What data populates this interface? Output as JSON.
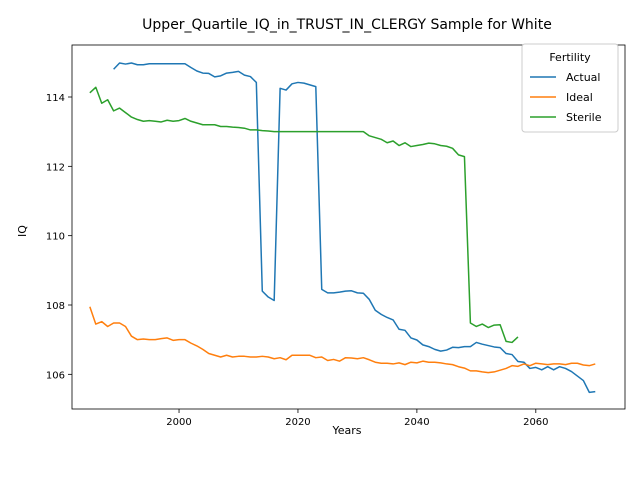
{
  "chart_data": {
    "type": "line",
    "title": "Upper_Quartile_IQ_in_TRUST_IN_CLERGY Sample for White",
    "xlabel": "Years",
    "ylabel": "IQ",
    "xlim": [
      1982,
      2075
    ],
    "ylim": [
      105.0,
      115.5
    ],
    "xticks": [
      2000,
      2020,
      2040,
      2060
    ],
    "yticks": [
      106,
      108,
      110,
      112,
      114
    ],
    "xtick_labels": [
      "2000",
      "2020",
      "2040",
      "2060"
    ],
    "ytick_labels": [
      "106",
      "108",
      "110",
      "112",
      "114"
    ],
    "legend": {
      "title": "Fertility",
      "position": "top-right"
    },
    "grid": false,
    "series": [
      {
        "name": "Actual",
        "color": "#1f77b4",
        "points": [
          [
            1989,
            114.8
          ],
          [
            1990,
            114.98
          ],
          [
            1991,
            114.95
          ],
          [
            1992,
            114.98
          ],
          [
            1993,
            114.93
          ],
          [
            1994,
            114.93
          ],
          [
            1995,
            114.96
          ],
          [
            1996,
            114.96
          ],
          [
            1997,
            114.96
          ],
          [
            1998,
            114.96
          ],
          [
            1999,
            114.96
          ],
          [
            2000,
            114.96
          ],
          [
            2001,
            114.96
          ],
          [
            2002,
            114.85
          ],
          [
            2003,
            114.75
          ],
          [
            2004,
            114.69
          ],
          [
            2005,
            114.68
          ],
          [
            2006,
            114.58
          ],
          [
            2007,
            114.61
          ],
          [
            2008,
            114.69
          ],
          [
            2009,
            114.71
          ],
          [
            2010,
            114.74
          ],
          [
            2011,
            114.63
          ],
          [
            2012,
            114.59
          ],
          [
            2013,
            114.42
          ],
          [
            2014,
            108.4
          ],
          [
            2015,
            108.23
          ],
          [
            2016,
            108.13
          ],
          [
            2017,
            114.25
          ],
          [
            2018,
            114.2
          ],
          [
            2019,
            114.38
          ],
          [
            2020,
            114.42
          ],
          [
            2021,
            114.4
          ],
          [
            2022,
            114.35
          ],
          [
            2023,
            114.3
          ],
          [
            2024,
            108.45
          ],
          [
            2025,
            108.35
          ],
          [
            2026,
            108.35
          ],
          [
            2027,
            108.37
          ],
          [
            2028,
            108.4
          ],
          [
            2029,
            108.41
          ],
          [
            2030,
            108.35
          ],
          [
            2031,
            108.34
          ],
          [
            2032,
            108.16
          ],
          [
            2033,
            107.85
          ],
          [
            2034,
            107.73
          ],
          [
            2035,
            107.64
          ],
          [
            2036,
            107.57
          ],
          [
            2037,
            107.3
          ],
          [
            2038,
            107.27
          ],
          [
            2039,
            107.05
          ],
          [
            2040,
            106.99
          ],
          [
            2041,
            106.85
          ],
          [
            2042,
            106.8
          ],
          [
            2043,
            106.72
          ],
          [
            2044,
            106.67
          ],
          [
            2045,
            106.7
          ],
          [
            2046,
            106.78
          ],
          [
            2047,
            106.77
          ],
          [
            2048,
            106.8
          ],
          [
            2049,
            106.8
          ],
          [
            2050,
            106.92
          ],
          [
            2051,
            106.87
          ],
          [
            2052,
            106.83
          ],
          [
            2053,
            106.79
          ],
          [
            2054,
            106.77
          ],
          [
            2055,
            106.6
          ],
          [
            2056,
            106.57
          ],
          [
            2057,
            106.37
          ],
          [
            2058,
            106.35
          ],
          [
            2059,
            106.17
          ],
          [
            2060,
            106.2
          ],
          [
            2061,
            106.13
          ],
          [
            2062,
            106.22
          ],
          [
            2063,
            106.13
          ],
          [
            2064,
            106.22
          ],
          [
            2065,
            106.17
          ],
          [
            2066,
            106.08
          ],
          [
            2067,
            105.95
          ],
          [
            2068,
            105.82
          ],
          [
            2069,
            105.48
          ],
          [
            2070,
            105.5
          ]
        ]
      },
      {
        "name": "Ideal",
        "color": "#ff7f0e",
        "points": [
          [
            1985,
            107.95
          ],
          [
            1986,
            107.45
          ],
          [
            1987,
            107.52
          ],
          [
            1988,
            107.38
          ],
          [
            1989,
            107.48
          ],
          [
            1990,
            107.48
          ],
          [
            1991,
            107.38
          ],
          [
            1992,
            107.1
          ],
          [
            1993,
            107.0
          ],
          [
            1994,
            107.02
          ],
          [
            1995,
            107.0
          ],
          [
            1996,
            107.0
          ],
          [
            1997,
            107.03
          ],
          [
            1998,
            107.05
          ],
          [
            1999,
            106.98
          ],
          [
            2000,
            107.0
          ],
          [
            2001,
            107.0
          ],
          [
            2002,
            106.9
          ],
          [
            2003,
            106.82
          ],
          [
            2004,
            106.72
          ],
          [
            2005,
            106.6
          ],
          [
            2006,
            106.55
          ],
          [
            2007,
            106.5
          ],
          [
            2008,
            106.55
          ],
          [
            2009,
            106.5
          ],
          [
            2010,
            106.52
          ],
          [
            2011,
            106.52
          ],
          [
            2012,
            106.5
          ],
          [
            2013,
            106.5
          ],
          [
            2014,
            106.52
          ],
          [
            2015,
            106.5
          ],
          [
            2016,
            106.45
          ],
          [
            2017,
            106.48
          ],
          [
            2018,
            106.42
          ],
          [
            2019,
            106.55
          ],
          [
            2020,
            106.55
          ],
          [
            2021,
            106.55
          ],
          [
            2022,
            106.55
          ],
          [
            2023,
            106.48
          ],
          [
            2024,
            106.5
          ],
          [
            2025,
            106.4
          ],
          [
            2026,
            106.43
          ],
          [
            2027,
            106.38
          ],
          [
            2028,
            106.48
          ],
          [
            2029,
            106.47
          ],
          [
            2030,
            106.45
          ],
          [
            2031,
            106.48
          ],
          [
            2032,
            106.42
          ],
          [
            2033,
            106.35
          ],
          [
            2034,
            106.32
          ],
          [
            2035,
            106.32
          ],
          [
            2036,
            106.3
          ],
          [
            2037,
            106.33
          ],
          [
            2038,
            106.28
          ],
          [
            2039,
            106.35
          ],
          [
            2040,
            106.33
          ],
          [
            2041,
            106.38
          ],
          [
            2042,
            106.35
          ],
          [
            2043,
            106.35
          ],
          [
            2044,
            106.33
          ],
          [
            2045,
            106.3
          ],
          [
            2046,
            106.28
          ],
          [
            2047,
            106.22
          ],
          [
            2048,
            106.18
          ],
          [
            2049,
            106.1
          ],
          [
            2050,
            106.1
          ],
          [
            2051,
            106.07
          ],
          [
            2052,
            106.05
          ],
          [
            2053,
            106.07
          ],
          [
            2054,
            106.12
          ],
          [
            2055,
            106.17
          ],
          [
            2056,
            106.25
          ],
          [
            2057,
            106.23
          ],
          [
            2058,
            106.3
          ],
          [
            2059,
            106.25
          ],
          [
            2060,
            106.32
          ],
          [
            2061,
            106.3
          ],
          [
            2062,
            106.28
          ],
          [
            2063,
            106.3
          ],
          [
            2064,
            106.3
          ],
          [
            2065,
            106.28
          ],
          [
            2066,
            106.32
          ],
          [
            2067,
            106.32
          ],
          [
            2068,
            106.27
          ],
          [
            2069,
            106.25
          ],
          [
            2070,
            106.3
          ]
        ]
      },
      {
        "name": "Sterile",
        "color": "#2ca02c",
        "points": [
          [
            1985,
            114.12
          ],
          [
            1986,
            114.28
          ],
          [
            1987,
            113.82
          ],
          [
            1988,
            113.92
          ],
          [
            1989,
            113.6
          ],
          [
            1990,
            113.68
          ],
          [
            1991,
            113.55
          ],
          [
            1992,
            113.42
          ],
          [
            1993,
            113.35
          ],
          [
            1994,
            113.3
          ],
          [
            1995,
            113.32
          ],
          [
            1996,
            113.3
          ],
          [
            1997,
            113.28
          ],
          [
            1998,
            113.33
          ],
          [
            1999,
            113.3
          ],
          [
            2000,
            113.32
          ],
          [
            2001,
            113.38
          ],
          [
            2002,
            113.3
          ],
          [
            2003,
            113.25
          ],
          [
            2004,
            113.2
          ],
          [
            2005,
            113.2
          ],
          [
            2006,
            113.2
          ],
          [
            2007,
            113.15
          ],
          [
            2008,
            113.15
          ],
          [
            2009,
            113.13
          ],
          [
            2010,
            113.12
          ],
          [
            2011,
            113.1
          ],
          [
            2012,
            113.05
          ],
          [
            2013,
            113.05
          ],
          [
            2014,
            113.03
          ],
          [
            2015,
            113.02
          ],
          [
            2016,
            113.0
          ],
          [
            2017,
            113.0
          ],
          [
            2018,
            113.0
          ],
          [
            2019,
            113.0
          ],
          [
            2020,
            113.0
          ],
          [
            2021,
            113.0
          ],
          [
            2022,
            113.0
          ],
          [
            2023,
            113.0
          ],
          [
            2024,
            113.0
          ],
          [
            2025,
            113.0
          ],
          [
            2026,
            113.0
          ],
          [
            2027,
            113.0
          ],
          [
            2028,
            113.0
          ],
          [
            2029,
            113.0
          ],
          [
            2030,
            113.0
          ],
          [
            2031,
            113.0
          ],
          [
            2032,
            112.88
          ],
          [
            2033,
            112.83
          ],
          [
            2034,
            112.78
          ],
          [
            2035,
            112.68
          ],
          [
            2036,
            112.73
          ],
          [
            2037,
            112.6
          ],
          [
            2038,
            112.68
          ],
          [
            2039,
            112.57
          ],
          [
            2040,
            112.6
          ],
          [
            2041,
            112.63
          ],
          [
            2042,
            112.67
          ],
          [
            2043,
            112.65
          ],
          [
            2044,
            112.6
          ],
          [
            2045,
            112.58
          ],
          [
            2046,
            112.52
          ],
          [
            2047,
            112.33
          ],
          [
            2048,
            112.28
          ],
          [
            2049,
            107.48
          ],
          [
            2050,
            107.38
          ],
          [
            2051,
            107.45
          ],
          [
            2052,
            107.35
          ],
          [
            2053,
            107.42
          ],
          [
            2054,
            107.43
          ],
          [
            2055,
            106.95
          ],
          [
            2056,
            106.92
          ],
          [
            2057,
            107.08
          ]
        ]
      }
    ]
  }
}
